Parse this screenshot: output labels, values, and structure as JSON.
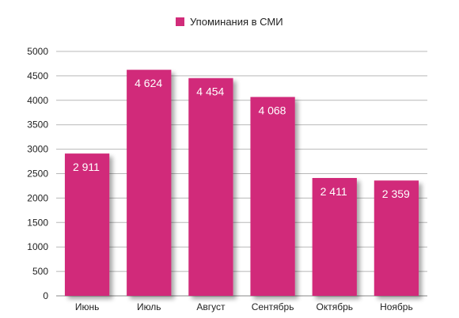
{
  "chart_data": {
    "type": "bar",
    "categories": [
      "Июнь",
      "Июль",
      "Август",
      "Сентябрь",
      "Октябрь",
      "Ноябрь"
    ],
    "series": [
      {
        "name": "Упоминания в СМИ",
        "values": [
          2911,
          4624,
          4454,
          4068,
          2411,
          2359
        ]
      }
    ],
    "value_labels": [
      "2 911",
      "4 624",
      "4 454",
      "4 068",
      "2 411",
      "2 359"
    ],
    "yticks": [
      0,
      500,
      1000,
      1500,
      2000,
      2500,
      3000,
      3500,
      4000,
      4500,
      5000
    ],
    "ylim": [
      0,
      5000
    ],
    "grid": true,
    "legend_position": "top-center",
    "colors": {
      "bar": "#d12c7a",
      "grid": "#b8b8b8",
      "axis": "#888888"
    }
  }
}
